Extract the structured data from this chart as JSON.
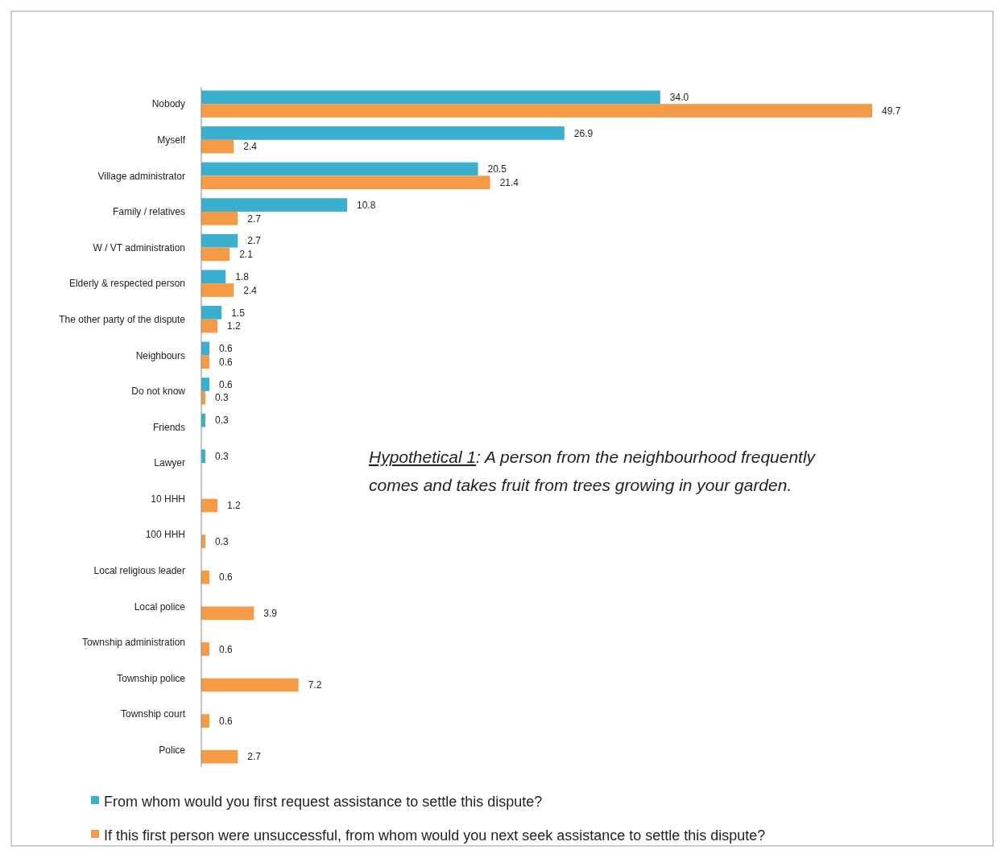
{
  "chart_data": {
    "type": "bar",
    "orientation": "horizontal",
    "legend": "bottom",
    "categories": [
      "Nobody",
      "Myself",
      "Village administrator",
      "Family / relatives",
      "W / VT administration",
      "Elderly & respected person",
      "The other party of the dispute",
      "Neighbours",
      "Do not know",
      "Friends",
      "Lawyer",
      "10 HHH",
      "100 HHH",
      "Local religious leader",
      "Local police",
      "Township administration",
      "Township police",
      "Township court",
      "Police"
    ],
    "series": [
      {
        "name": "From whom would you first request assistance to settle this dispute?",
        "color": "#3aafcf",
        "values": [
          34.0,
          26.9,
          20.5,
          10.8,
          2.7,
          1.8,
          1.5,
          0.6,
          0.6,
          0.3,
          0.3,
          null,
          null,
          null,
          null,
          null,
          null,
          null,
          null
        ],
        "value_labels": [
          "34.0",
          "26.9",
          "20.5",
          "10.8",
          "2.7",
          "1.8",
          "1.5",
          "0.6",
          "0.6",
          "0.3",
          "0.3",
          null,
          null,
          null,
          null,
          null,
          null,
          null,
          null
        ]
      },
      {
        "name": "If this first person were unsuccessful, from whom would you next seek assistance to settle this dispute?",
        "color": "#f59a45",
        "values": [
          49.7,
          2.4,
          21.4,
          2.7,
          2.1,
          2.4,
          1.2,
          0.6,
          0.3,
          null,
          null,
          1.2,
          0.3,
          0.6,
          3.9,
          0.6,
          7.2,
          0.6,
          2.7
        ],
        "value_labels": [
          "49.7",
          "2.4",
          "21.4",
          "2.7",
          "2.1",
          "2.4",
          "1.2",
          "0.6",
          "0.3",
          null,
          null,
          "1.2",
          "0.3",
          "0.6",
          "3.9",
          "0.6",
          "7.2",
          "0.6",
          "2.7"
        ]
      }
    ],
    "annotations": [
      {
        "text": "Hypothetical 1: A person from the neighbourhood frequently comes and takes fruit from trees growing in your garden."
      }
    ]
  }
}
